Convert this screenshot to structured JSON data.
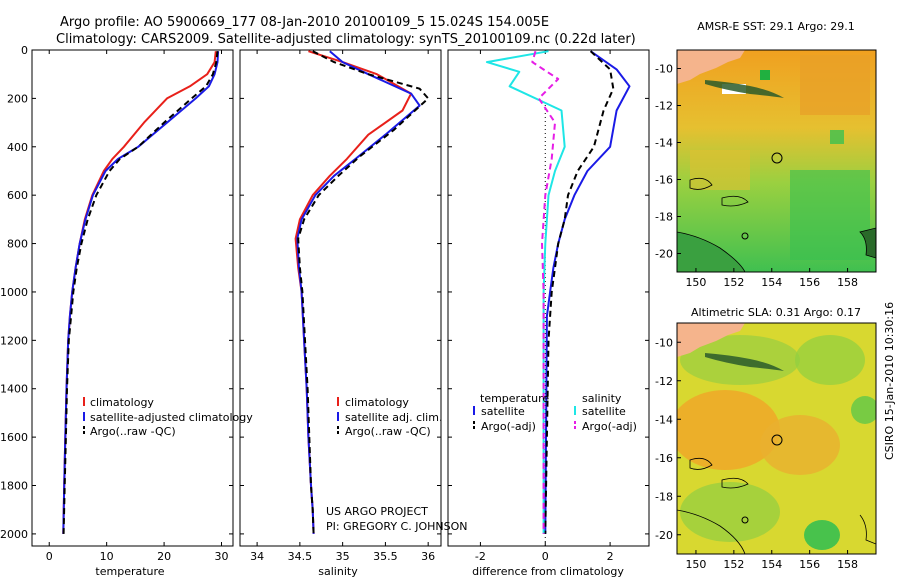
{
  "header": {
    "line1": "Argo profile: AO 5900669_177 08-Jan-2010 20100109_5 15.024S 154.005E",
    "line2": "Climatology: CARS2009. Satellite-adjusted climatology: synTS_20100109.nc (0.22d later)"
  },
  "colors": {
    "climatology": "#e8201a",
    "satellite": "#1a1ae6",
    "argo": "#000000",
    "satellite_diff_s": "#1ee6e6",
    "argo_diff_s": "#e61ee6",
    "land": "#f5b48c"
  },
  "footer": {
    "project": "US ARGO PROJECT",
    "pi": "PI: GREGORY C. JOHNSON",
    "stamp": "CSIRO 15-Jan-2010 10:30:16"
  },
  "legends": {
    "temperature": [
      "climatology",
      "satellite-adjusted climatology",
      "Argo(..raw -QC)"
    ],
    "salinity": [
      "climatology",
      "satellite adj. clim.",
      "Argo(..raw -QC)"
    ],
    "difference": {
      "head_t": "temperature",
      "head_s": "salinity",
      "t_items": [
        "satellite",
        "Argo(-adj)"
      ],
      "s_items": [
        "satellite",
        "Argo(-adj)"
      ]
    }
  },
  "chart_data": [
    {
      "type": "line",
      "title": "",
      "xlabel": "temperature",
      "ylabel": "",
      "xlim": [
        -3,
        32
      ],
      "ylim": [
        2050,
        0
      ],
      "xticks": [
        0,
        10,
        20,
        30
      ],
      "yticks": [
        0,
        200,
        400,
        600,
        800,
        1000,
        1200,
        1400,
        1600,
        1800,
        2000
      ],
      "series": [
        {
          "name": "climatology",
          "x": [
            29.0,
            28.8,
            27.5,
            24.5,
            20.5,
            16.5,
            13.0,
            11.0,
            9.5,
            7.5,
            6.2,
            5.3,
            4.6,
            4.0,
            3.6,
            3.3,
            3.0,
            2.8,
            2.6,
            2.45
          ],
          "y": [
            5,
            50,
            100,
            150,
            200,
            300,
            400,
            450,
            500,
            600,
            700,
            800,
            900,
            1000,
            1100,
            1200,
            1400,
            1600,
            1800,
            2000
          ]
        },
        {
          "name": "satellite-adjusted climatology",
          "x": [
            29.4,
            29.3,
            28.8,
            27.8,
            25.5,
            20.5,
            15.5,
            12.0,
            9.8,
            7.6,
            6.3,
            5.3,
            4.6,
            4.0,
            3.6,
            3.3,
            3.0,
            2.8,
            2.6,
            2.45
          ],
          "y": [
            5,
            50,
            100,
            150,
            200,
            300,
            400,
            450,
            500,
            600,
            700,
            800,
            900,
            1000,
            1100,
            1200,
            1400,
            1600,
            1800,
            2000
          ]
        },
        {
          "name": "Argo(..raw -QC)",
          "x": [
            29.3,
            29.1,
            28.5,
            27.3,
            24.8,
            20.0,
            15.5,
            12.3,
            10.5,
            8.2,
            6.7,
            5.6,
            4.8,
            4.2,
            3.8,
            3.4,
            3.1,
            2.9,
            2.7,
            2.5
          ],
          "y": [
            5,
            50,
            100,
            150,
            200,
            300,
            400,
            450,
            500,
            600,
            700,
            800,
            900,
            1000,
            1100,
            1200,
            1400,
            1600,
            1800,
            2000
          ]
        }
      ]
    },
    {
      "type": "line",
      "xlabel": "salinity",
      "xlim": [
        33.8,
        36.15
      ],
      "ylim": [
        2050,
        0
      ],
      "xticks": [
        34,
        34.5,
        35,
        35.5,
        36
      ],
      "series": [
        {
          "name": "climatology",
          "x": [
            34.6,
            35.0,
            35.4,
            35.8,
            35.7,
            35.3,
            35.05,
            34.85,
            34.65,
            34.5,
            34.45,
            34.48,
            34.52,
            34.55,
            34.58,
            34.6,
            34.63,
            34.65,
            34.66
          ],
          "y": [
            5,
            50,
            100,
            180,
            250,
            350,
            450,
            520,
            600,
            700,
            780,
            900,
            1000,
            1200,
            1400,
            1600,
            1800,
            1900,
            2000
          ]
        },
        {
          "name": "satellite adj. clim.",
          "x": [
            34.85,
            35.0,
            35.3,
            35.8,
            35.9,
            35.5,
            35.15,
            34.9,
            34.68,
            34.52,
            34.47,
            34.49,
            34.52,
            34.55,
            34.58,
            34.6,
            34.63,
            34.65,
            34.66
          ],
          "y": [
            5,
            50,
            100,
            180,
            230,
            350,
            450,
            520,
            600,
            700,
            780,
            900,
            1000,
            1200,
            1400,
            1600,
            1800,
            1900,
            2000
          ]
        },
        {
          "name": "Argo(..raw -QC)",
          "x": [
            34.65,
            34.9,
            35.3,
            35.9,
            36.0,
            35.6,
            35.2,
            34.95,
            34.72,
            34.55,
            34.48,
            34.5,
            34.53,
            34.56,
            34.59,
            34.61,
            34.63,
            34.65,
            34.66
          ],
          "y": [
            5,
            50,
            100,
            160,
            200,
            330,
            440,
            520,
            600,
            700,
            780,
            900,
            1000,
            1200,
            1400,
            1600,
            1800,
            1900,
            2000
          ]
        }
      ]
    },
    {
      "type": "line",
      "xlabel": "difference from climatology",
      "xlim": [
        -3,
        3.2
      ],
      "ylim": [
        2050,
        0
      ],
      "xticks": [
        -2,
        0,
        2
      ],
      "series": [
        {
          "name": "temperature satellite",
          "x": [
            1.4,
            2.2,
            2.6,
            2.2,
            2.0,
            1.3,
            0.9,
            0.6,
            0.4,
            0.25,
            0.15,
            0.05,
            0
          ],
          "y": [
            5,
            80,
            150,
            250,
            400,
            500,
            600,
            700,
            800,
            900,
            1000,
            1100,
            2000
          ]
        },
        {
          "name": "temperature Argo(-adj)",
          "x": [
            1.4,
            2.0,
            2.1,
            1.8,
            1.5,
            1.0,
            0.7,
            0.6,
            0.4,
            0.3,
            0.2,
            0.1,
            0
          ],
          "y": [
            5,
            80,
            160,
            250,
            400,
            500,
            600,
            700,
            800,
            900,
            1000,
            1200,
            2000
          ]
        },
        {
          "name": "salinity satellite",
          "x": [
            0.1,
            -1.8,
            -0.8,
            -1.1,
            0.5,
            0.6,
            0.3,
            0.1,
            0.0,
            -0.05,
            -0.05,
            -0.05
          ],
          "y": [
            5,
            50,
            90,
            150,
            250,
            400,
            500,
            600,
            800,
            1000,
            1500,
            2000
          ]
        },
        {
          "name": "salinity Argo(-adj)",
          "x": [
            -0.3,
            -0.4,
            0.4,
            -0.2,
            0.3,
            0.2,
            0.0,
            -0.1,
            -0.05,
            -0.05
          ],
          "y": [
            5,
            50,
            120,
            200,
            300,
            450,
            600,
            800,
            1000,
            2000
          ]
        }
      ],
      "reference_line_x": 0
    },
    {
      "type": "heatmap",
      "title": "AMSR-E SST: 29.1 Argo: 29.1",
      "xlim": [
        149,
        159.5
      ],
      "ylim": [
        -21,
        -9
      ],
      "xticks": [
        150,
        152,
        154,
        156,
        158
      ],
      "yticks": [
        -10,
        -12,
        -14,
        -16,
        -18,
        -20
      ],
      "profile_marker": {
        "lon": 154.0,
        "lat": -15.0
      }
    },
    {
      "type": "heatmap",
      "title": "Altimetric SLA: 0.31 Argo: 0.17",
      "xlim": [
        149,
        159.5
      ],
      "ylim": [
        -21,
        -9
      ],
      "xticks": [
        150,
        152,
        154,
        156,
        158
      ],
      "yticks": [
        -10,
        -12,
        -14,
        -16,
        -18,
        -20
      ],
      "profile_marker": {
        "lon": 154.0,
        "lat": -15.0
      }
    }
  ]
}
